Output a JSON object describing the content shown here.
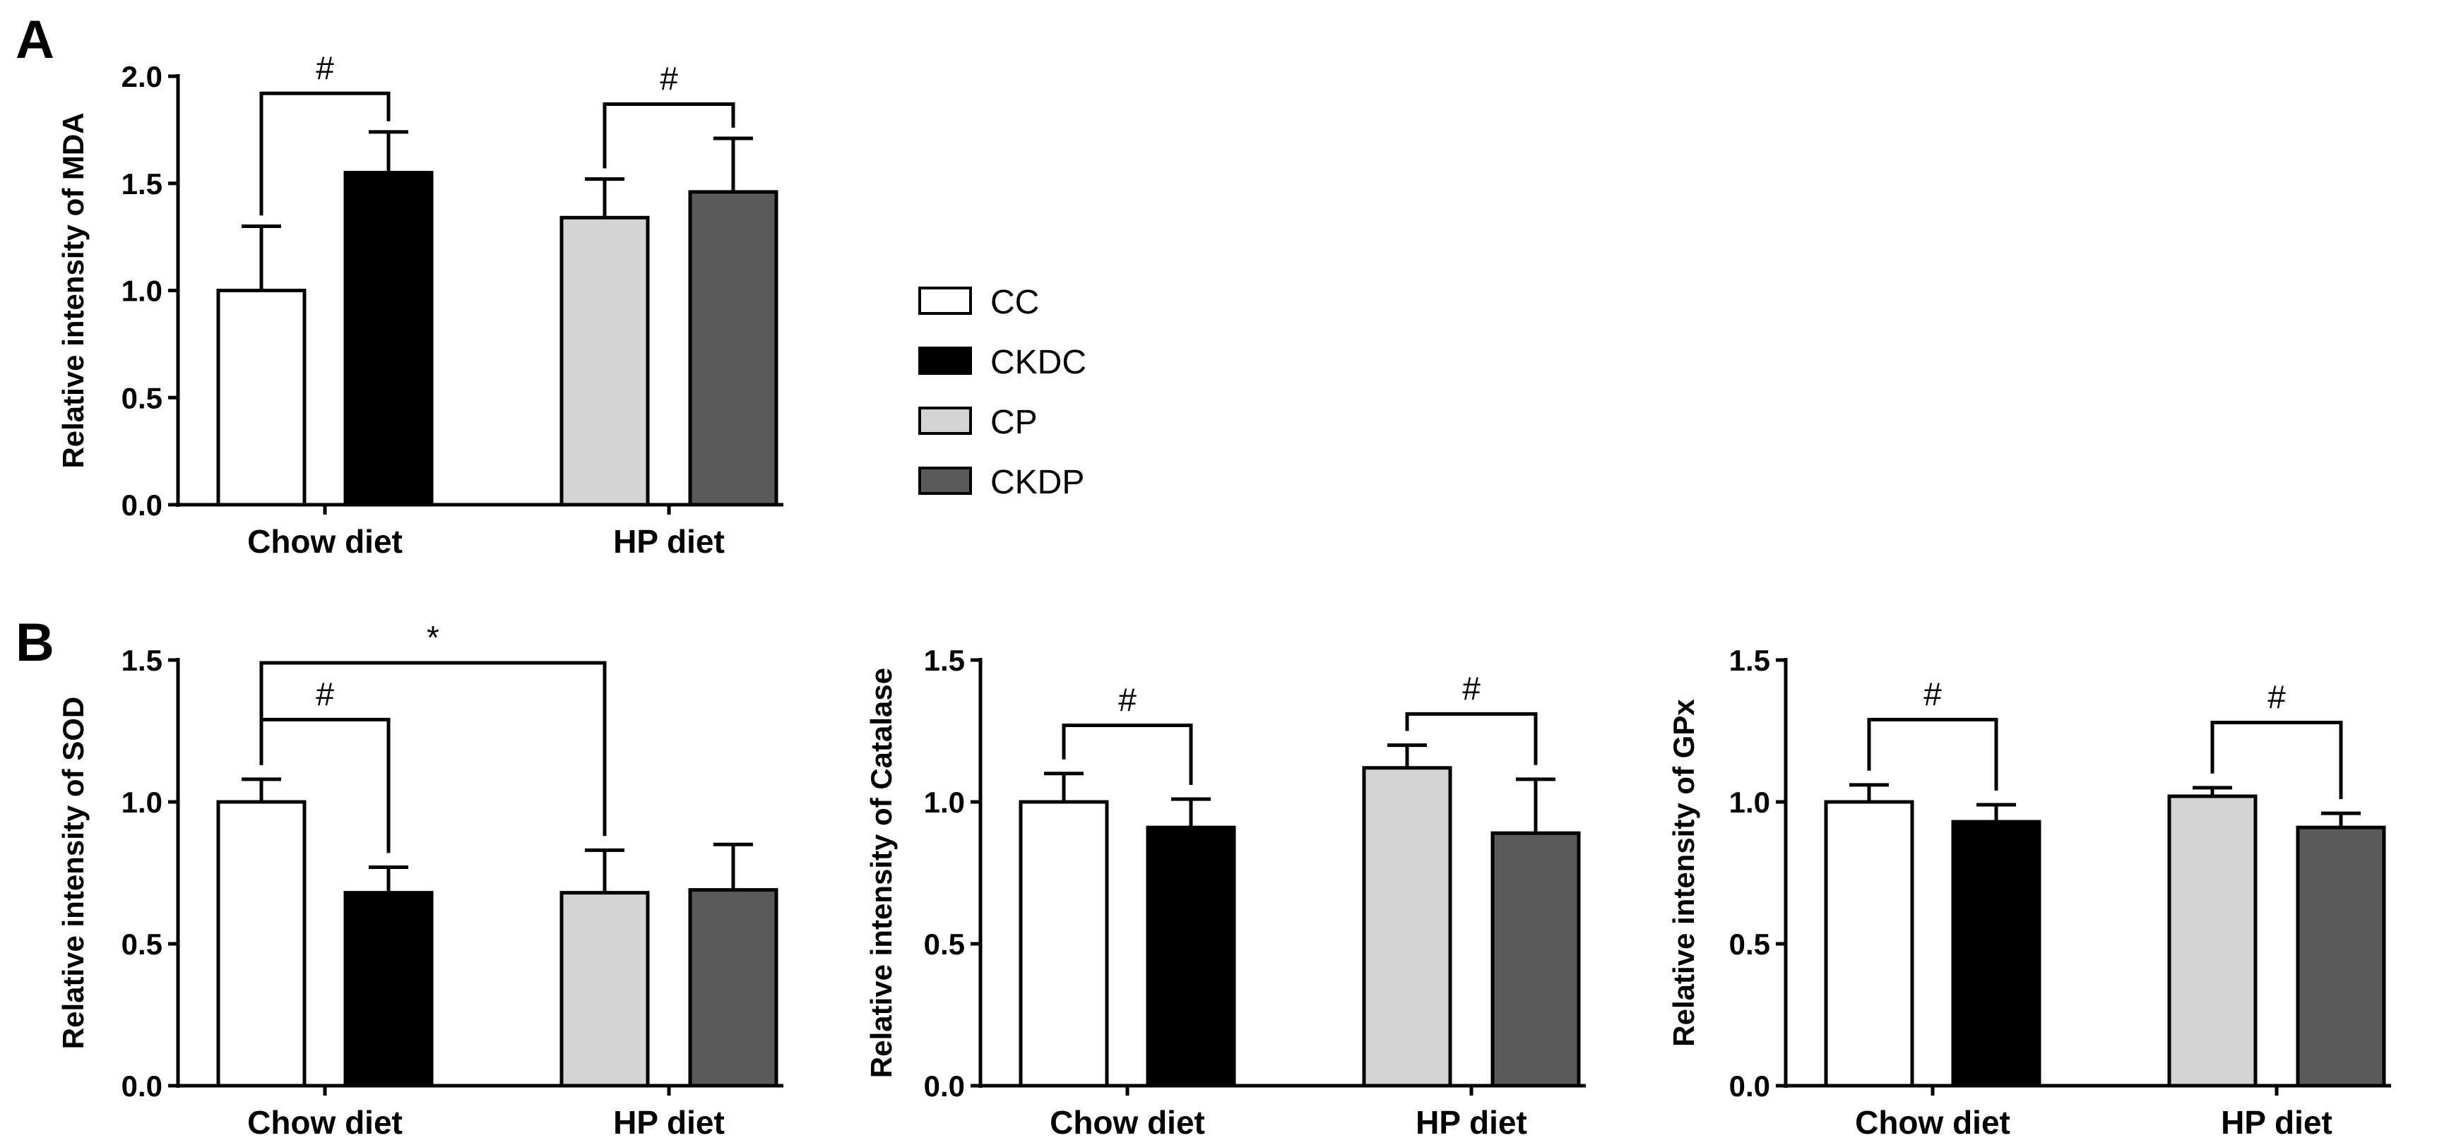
{
  "figure": {
    "panels": [
      {
        "letter": "A"
      },
      {
        "letter": "B"
      }
    ],
    "groups": [
      {
        "name": "CC",
        "color": "#ffffff"
      },
      {
        "name": "CKDC",
        "color": "#000000"
      },
      {
        "name": "CP",
        "color": "#d4d4d4"
      },
      {
        "name": "CKDP",
        "color": "#5a5a5a"
      }
    ]
  },
  "chart_data": [
    {
      "type": "bar",
      "panel": "A",
      "title": "",
      "ylabel": "Relative intensity of MDA",
      "categories": [
        "Chow diet",
        "HP diet"
      ],
      "ylim": [
        0,
        2.0
      ],
      "yticks": [
        "0.0",
        "0.5",
        "1.0",
        "1.5",
        "2.0"
      ],
      "series": [
        {
          "name": "CC",
          "values": [
            1.0,
            null
          ],
          "errors": [
            0.3,
            null
          ]
        },
        {
          "name": "CKDC",
          "values": [
            1.55,
            null
          ],
          "errors": [
            0.19,
            null
          ]
        },
        {
          "name": "CP",
          "values": [
            null,
            1.34
          ],
          "errors": [
            null,
            0.18
          ]
        },
        {
          "name": "CKDP",
          "values": [
            null,
            1.46
          ],
          "errors": [
            null,
            0.25
          ]
        }
      ],
      "annotations": [
        {
          "label": "#",
          "from": 0,
          "to": 1,
          "y": 1.92
        },
        {
          "label": "#",
          "from": 2,
          "to": 3,
          "y": 1.87
        }
      ]
    },
    {
      "type": "bar",
      "panel": "B",
      "title": "",
      "ylabel": "Relative intensity of SOD",
      "categories": [
        "Chow diet",
        "HP diet"
      ],
      "ylim": [
        0,
        1.5
      ],
      "yticks": [
        "0.0",
        "0.5",
        "1.0",
        "1.5"
      ],
      "series": [
        {
          "name": "CC",
          "values": [
            1.0,
            null
          ],
          "errors": [
            0.08,
            null
          ]
        },
        {
          "name": "CKDC",
          "values": [
            0.68,
            null
          ],
          "errors": [
            0.09,
            null
          ]
        },
        {
          "name": "CP",
          "values": [
            null,
            0.68
          ],
          "errors": [
            null,
            0.15
          ]
        },
        {
          "name": "CKDP",
          "values": [
            null,
            0.69
          ],
          "errors": [
            null,
            0.16
          ]
        }
      ],
      "annotations": [
        {
          "label": "*",
          "from": 0,
          "to": 2,
          "y": 1.49
        },
        {
          "label": "#",
          "from": 0,
          "to": 1,
          "y": 1.29
        }
      ]
    },
    {
      "type": "bar",
      "panel": "B",
      "title": "",
      "ylabel": "Relative intensity of Catalase",
      "categories": [
        "Chow diet",
        "HP diet"
      ],
      "ylim": [
        0,
        1.5
      ],
      "yticks": [
        "0.0",
        "0.5",
        "1.0",
        "1.5"
      ],
      "series": [
        {
          "name": "CC",
          "values": [
            1.0,
            null
          ],
          "errors": [
            0.1,
            null
          ]
        },
        {
          "name": "CKDC",
          "values": [
            0.91,
            null
          ],
          "errors": [
            0.1,
            null
          ]
        },
        {
          "name": "CP",
          "values": [
            null,
            1.12
          ],
          "errors": [
            null,
            0.08
          ]
        },
        {
          "name": "CKDP",
          "values": [
            null,
            0.89
          ],
          "errors": [
            null,
            0.19
          ]
        }
      ],
      "annotations": [
        {
          "label": "#",
          "from": 0,
          "to": 1,
          "y": 1.27
        },
        {
          "label": "#",
          "from": 2,
          "to": 3,
          "y": 1.31
        }
      ]
    },
    {
      "type": "bar",
      "panel": "B",
      "title": "",
      "ylabel": "Relative intensity of GPx",
      "categories": [
        "Chow diet",
        "HP diet"
      ],
      "ylim": [
        0,
        1.5
      ],
      "yticks": [
        "0.0",
        "0.5",
        "1.0",
        "1.5"
      ],
      "series": [
        {
          "name": "CC",
          "values": [
            1.0,
            null
          ],
          "errors": [
            0.06,
            null
          ]
        },
        {
          "name": "CKDC",
          "values": [
            0.93,
            null
          ],
          "errors": [
            0.06,
            null
          ]
        },
        {
          "name": "CP",
          "values": [
            null,
            1.02
          ],
          "errors": [
            null,
            0.03
          ]
        },
        {
          "name": "CKDP",
          "values": [
            null,
            0.91
          ],
          "errors": [
            null,
            0.05
          ]
        }
      ],
      "annotations": [
        {
          "label": "#",
          "from": 0,
          "to": 1,
          "y": 1.29
        },
        {
          "label": "#",
          "from": 2,
          "to": 3,
          "y": 1.28
        }
      ]
    }
  ]
}
